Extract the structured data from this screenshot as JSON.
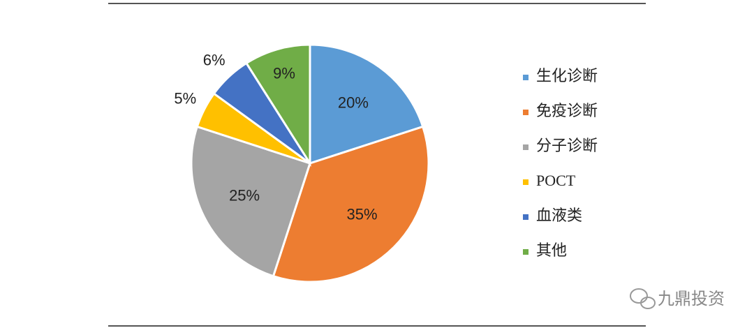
{
  "chart_data": {
    "type": "pie",
    "categories": [
      "生化诊断",
      "免疫诊断",
      "分子诊断",
      "POCT",
      "血液类",
      "其他"
    ],
    "values": [
      20,
      35,
      25,
      5,
      6,
      9
    ],
    "value_labels": [
      "20%",
      "35%",
      "25%",
      "5%",
      "6%",
      "9%"
    ],
    "colors": [
      "#5b9bd5",
      "#ed7d31",
      "#a5a5a5",
      "#ffc000",
      "#4472c4",
      "#70ad47"
    ],
    "legend": "right"
  },
  "watermark": "九鼎投资"
}
